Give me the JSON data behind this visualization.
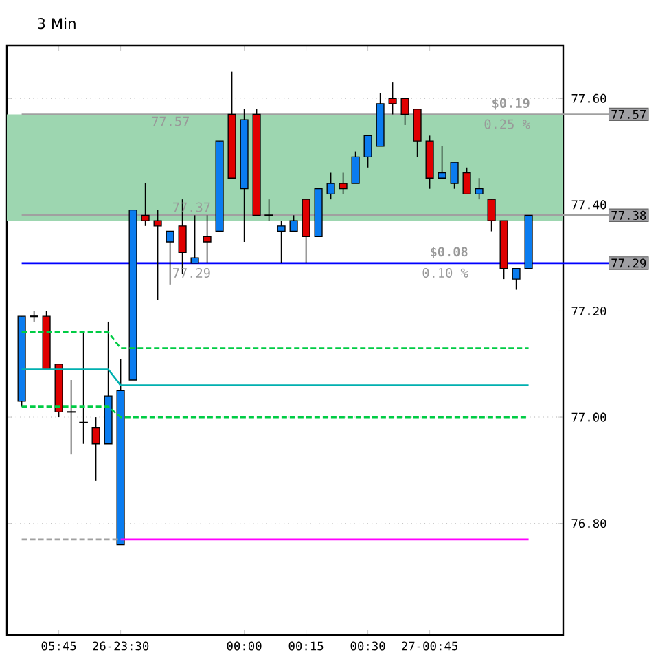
{
  "chart_data": {
    "type": "candlestick",
    "title": "3 Min",
    "categories": [
      null,
      null,
      null,
      "05:45",
      null,
      null,
      null,
      null,
      "26-23:30",
      null,
      null,
      null,
      null,
      null,
      null,
      null,
      null,
      null,
      "00:00",
      null,
      null,
      null,
      null,
      "00:15",
      null,
      null,
      null,
      null,
      "00:30",
      null,
      null,
      null,
      null,
      "27-00:45",
      null,
      null,
      null,
      null,
      null,
      null,
      null,
      null
    ],
    "ohlc": [
      [
        77.03,
        77.19,
        77.02,
        77.19
      ],
      [
        77.19,
        77.2,
        77.18,
        77.19
      ],
      [
        77.19,
        77.2,
        77.09,
        77.09
      ],
      [
        77.1,
        77.1,
        77.0,
        77.01
      ],
      [
        77.01,
        77.07,
        76.93,
        77.01
      ],
      [
        76.99,
        77.16,
        76.95,
        76.99
      ],
      [
        76.98,
        77.0,
        76.88,
        76.95
      ],
      [
        76.95,
        77.18,
        76.95,
        77.04
      ],
      [
        76.76,
        77.11,
        76.76,
        77.05
      ],
      [
        77.07,
        77.39,
        77.07,
        77.39
      ],
      [
        77.38,
        77.44,
        77.36,
        77.37
      ],
      [
        77.37,
        77.39,
        77.22,
        77.36
      ],
      [
        77.33,
        77.35,
        77.25,
        77.35
      ],
      [
        77.36,
        77.41,
        77.27,
        77.31
      ],
      [
        77.29,
        77.38,
        77.29,
        77.3
      ],
      [
        77.34,
        77.38,
        77.29,
        77.33
      ],
      [
        77.35,
        77.52,
        77.35,
        77.52
      ],
      [
        77.57,
        77.65,
        77.45,
        77.45
      ],
      [
        77.43,
        77.58,
        77.33,
        77.56
      ],
      [
        77.57,
        77.58,
        77.38,
        77.38
      ],
      [
        77.38,
        77.41,
        77.37,
        77.38
      ],
      [
        77.35,
        77.37,
        77.29,
        77.36
      ],
      [
        77.35,
        77.38,
        77.35,
        77.37
      ],
      [
        77.41,
        77.41,
        77.29,
        77.34
      ],
      [
        77.34,
        77.43,
        77.34,
        77.43
      ],
      [
        77.42,
        77.46,
        77.41,
        77.44
      ],
      [
        77.44,
        77.46,
        77.42,
        77.43
      ],
      [
        77.44,
        77.5,
        77.44,
        77.49
      ],
      [
        77.49,
        77.53,
        77.47,
        77.53
      ],
      [
        77.51,
        77.61,
        77.51,
        77.59
      ],
      [
        77.6,
        77.63,
        77.57,
        77.59
      ],
      [
        77.6,
        77.6,
        77.55,
        77.57
      ],
      [
        77.58,
        77.58,
        77.49,
        77.52
      ],
      [
        77.52,
        77.53,
        77.43,
        77.45
      ],
      [
        77.45,
        77.51,
        77.45,
        77.46
      ],
      [
        77.44,
        77.48,
        77.43,
        77.48
      ],
      [
        77.46,
        77.47,
        77.42,
        77.42
      ],
      [
        77.42,
        77.45,
        77.41,
        77.43
      ],
      [
        77.41,
        77.41,
        77.35,
        77.37
      ],
      [
        77.37,
        77.37,
        77.26,
        77.28
      ],
      [
        77.26,
        77.28,
        77.24,
        77.28
      ],
      [
        77.28,
        77.38,
        77.28,
        77.38
      ]
    ],
    "colors": [
      "#0a7cf0",
      "#000000",
      "#e00000",
      "#e00000",
      "#000000",
      "#000000",
      "#e00000",
      "#0a7cf0",
      "#0a7cf0",
      "#0a7cf0",
      "#e00000",
      "#e00000",
      "#0a7cf0",
      "#e00000",
      "#0a7cf0",
      "#e00000",
      "#0a7cf0",
      "#e00000",
      "#0a7cf0",
      "#e00000",
      "#000000",
      "#0a7cf0",
      "#0a7cf0",
      "#e00000",
      "#0a7cf0",
      "#0a7cf0",
      "#e00000",
      "#0a7cf0",
      "#0a7cf0",
      "#0a7cf0",
      "#e00000",
      "#e00000",
      "#e00000",
      "#e00000",
      "#0a7cf0",
      "#0a7cf0",
      "#e00000",
      "#0a7cf0",
      "#e00000",
      "#e00000",
      "#0a7cf0",
      "#0a7cf0"
    ],
    "series": [
      {
        "type": "line",
        "color": "#00b0b0",
        "line_style": "solid",
        "values": [
          77.09,
          77.09,
          77.09,
          77.09,
          77.09,
          77.09,
          77.09,
          77.09,
          77.06,
          77.06,
          77.06,
          77.06,
          77.06,
          77.06,
          77.06,
          77.06,
          77.06,
          77.06,
          77.06,
          77.06,
          77.06,
          77.06,
          77.06,
          77.06,
          77.06,
          77.06,
          77.06,
          77.06,
          77.06,
          77.06,
          77.06,
          77.06,
          77.06,
          77.06,
          77.06,
          77.06,
          77.06,
          77.06,
          77.06,
          77.06,
          77.06,
          77.06
        ]
      },
      {
        "type": "line",
        "color": "#00cc44",
        "line_style": "dashed",
        "values": [
          77.16,
          77.16,
          77.16,
          77.16,
          77.16,
          77.16,
          77.16,
          77.16,
          77.13,
          77.13,
          77.13,
          77.13,
          77.13,
          77.13,
          77.13,
          77.13,
          77.13,
          77.13,
          77.13,
          77.13,
          77.13,
          77.13,
          77.13,
          77.13,
          77.13,
          77.13,
          77.13,
          77.13,
          77.13,
          77.13,
          77.13,
          77.13,
          77.13,
          77.13,
          77.13,
          77.13,
          77.13,
          77.13,
          77.13,
          77.13,
          77.13,
          77.13
        ]
      },
      {
        "type": "line",
        "color": "#00cc44",
        "line_style": "dashed",
        "values": [
          77.02,
          77.02,
          77.02,
          77.02,
          77.02,
          77.02,
          77.02,
          77.02,
          77.0,
          77.0,
          77.0,
          77.0,
          77.0,
          77.0,
          77.0,
          77.0,
          77.0,
          77.0,
          77.0,
          77.0,
          77.0,
          77.0,
          77.0,
          77.0,
          77.0,
          77.0,
          77.0,
          77.0,
          77.0,
          77.0,
          77.0,
          77.0,
          77.0,
          77.0,
          77.0,
          77.0,
          77.0,
          77.0,
          77.0,
          77.0,
          77.0,
          77.0
        ]
      },
      {
        "type": "line",
        "color": "#ff00ff",
        "line_style": "solid",
        "values": [
          null,
          null,
          null,
          null,
          null,
          null,
          null,
          null,
          76.77,
          76.77,
          76.77,
          76.77,
          76.77,
          76.77,
          76.77,
          76.77,
          76.77,
          76.77,
          76.77,
          76.77,
          76.77,
          76.77,
          76.77,
          76.77,
          76.77,
          76.77,
          76.77,
          76.77,
          76.77,
          76.77,
          76.77,
          76.77,
          76.77,
          76.77,
          76.77,
          76.77,
          76.77,
          76.77,
          76.77,
          76.77,
          76.77,
          76.77
        ]
      },
      {
        "type": "line",
        "color": "#a0a0a0",
        "line_style": "dashed",
        "values": [
          76.77,
          76.77,
          76.77,
          76.77,
          76.77,
          76.77,
          76.77,
          76.77,
          76.77,
          null,
          null,
          null,
          null,
          null,
          null,
          null,
          null,
          null,
          null,
          null,
          null,
          null,
          null,
          null,
          null,
          null,
          null,
          null,
          null,
          null,
          null,
          null,
          null,
          null,
          null,
          null,
          null,
          null,
          null,
          null,
          null,
          null
        ]
      }
    ],
    "ylim": [
      76.59,
      77.7
    ],
    "yticks": [
      {
        "value": 76.8,
        "label": "76.80"
      },
      {
        "value": 77.0,
        "label": "77.00"
      },
      {
        "value": 77.2,
        "label": "77.20"
      },
      {
        "value": 77.4,
        "label": "77.40"
      },
      {
        "value": 77.6,
        "label": "77.60"
      }
    ],
    "bands": [
      {
        "axis": "y",
        "from": 77.37,
        "to": 77.57,
        "color": "#9dd6b0"
      }
    ],
    "ref_lines": [
      {
        "axis": "y",
        "value": 77.29,
        "label": "77.29",
        "color": "#0000ff",
        "line_style": "solid"
      },
      {
        "axis": "y",
        "value": 77.38,
        "label": "77.38",
        "color": "#a0a0a0",
        "line_style": "solid"
      },
      {
        "axis": "y",
        "value": 77.57,
        "label": "77.57",
        "color": "#a0a0a0",
        "line_style": "solid"
      }
    ],
    "annotations": [
      "77.57",
      "77.37",
      "77.29",
      "$0.19",
      "0.25 %",
      "$0.08",
      "0.10 %"
    ],
    "grid": "y",
    "marker": "none"
  }
}
